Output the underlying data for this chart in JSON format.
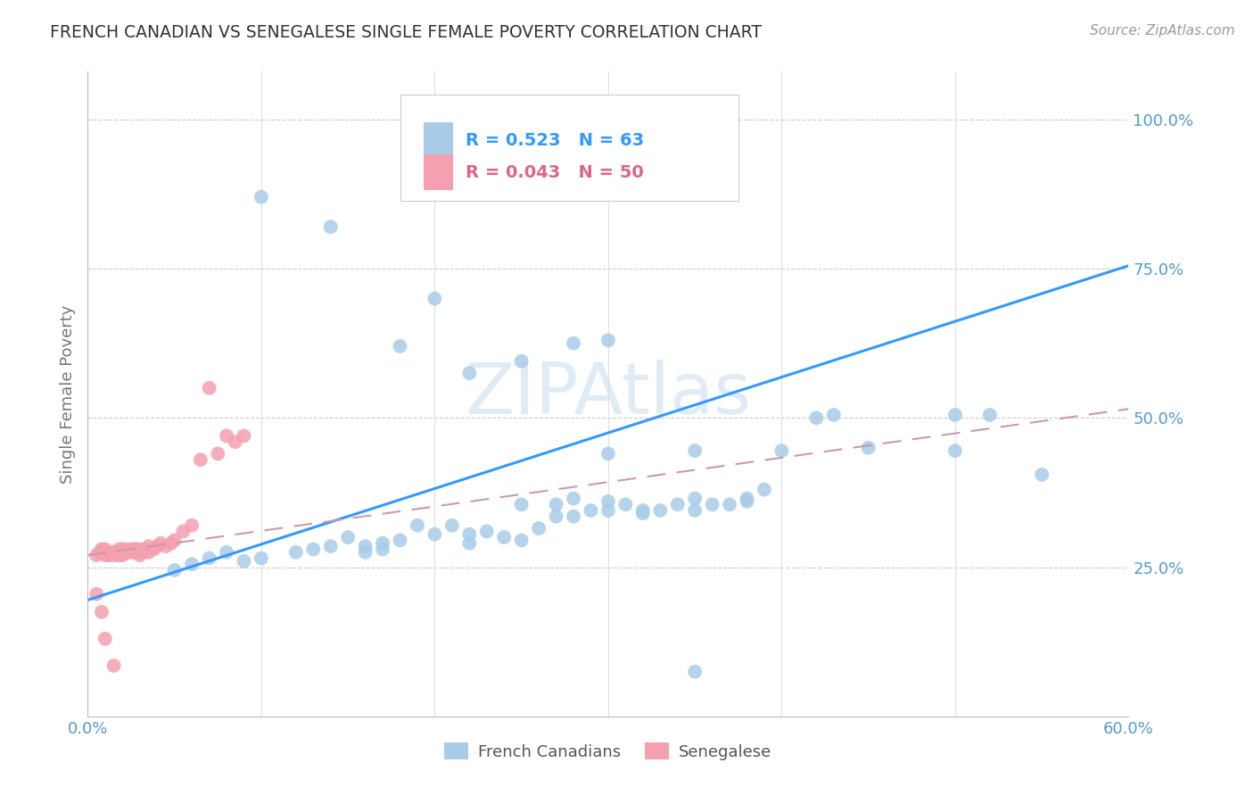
{
  "title": "FRENCH CANADIAN VS SENEGALESE SINGLE FEMALE POVERTY CORRELATION CHART",
  "source": "Source: ZipAtlas.com",
  "ylabel": "Single Female Poverty",
  "xlim": [
    0.0,
    0.6
  ],
  "ylim": [
    0.0,
    1.08
  ],
  "legend1_label": "French Canadians",
  "legend2_label": "Senegalese",
  "r1": 0.523,
  "n1": 63,
  "r2": 0.043,
  "n2": 50,
  "color_blue": "#a8cce8",
  "color_pink": "#f4a0b0",
  "color_trendline_blue": "#3399ff",
  "color_trendline_pink": "#cc99aa",
  "color_axis_labels": "#5599cc",
  "watermark_color": "#c5ddf0",
  "blue_trend_x0": 0.0,
  "blue_trend_y0": 0.195,
  "blue_trend_x1": 0.6,
  "blue_trend_y1": 0.755,
  "pink_trend_x0": 0.0,
  "pink_trend_y0": 0.27,
  "pink_trend_x1": 0.6,
  "pink_trend_y1": 0.515,
  "blue_points_x": [
    0.05,
    0.06,
    0.07,
    0.08,
    0.09,
    0.1,
    0.12,
    0.13,
    0.14,
    0.15,
    0.16,
    0.16,
    0.17,
    0.17,
    0.18,
    0.19,
    0.2,
    0.21,
    0.22,
    0.22,
    0.23,
    0.24,
    0.25,
    0.25,
    0.26,
    0.27,
    0.27,
    0.28,
    0.28,
    0.29,
    0.3,
    0.3,
    0.31,
    0.32,
    0.32,
    0.33,
    0.34,
    0.35,
    0.35,
    0.36,
    0.37,
    0.38,
    0.38,
    0.39,
    0.3,
    0.35,
    0.4,
    0.45,
    0.5,
    0.55,
    0.42,
    0.43,
    0.5,
    0.52,
    0.22,
    0.25,
    0.28,
    0.3,
    0.18,
    0.2,
    0.14,
    0.1,
    0.35
  ],
  "blue_points_y": [
    0.245,
    0.255,
    0.265,
    0.275,
    0.26,
    0.265,
    0.275,
    0.28,
    0.285,
    0.3,
    0.275,
    0.285,
    0.28,
    0.29,
    0.295,
    0.32,
    0.305,
    0.32,
    0.29,
    0.305,
    0.31,
    0.3,
    0.295,
    0.355,
    0.315,
    0.335,
    0.355,
    0.335,
    0.365,
    0.345,
    0.36,
    0.345,
    0.355,
    0.34,
    0.345,
    0.345,
    0.355,
    0.345,
    0.365,
    0.355,
    0.355,
    0.365,
    0.36,
    0.38,
    0.44,
    0.445,
    0.445,
    0.45,
    0.445,
    0.405,
    0.5,
    0.505,
    0.505,
    0.505,
    0.575,
    0.595,
    0.625,
    0.63,
    0.62,
    0.7,
    0.82,
    0.87,
    0.075
  ],
  "pink_points_x": [
    0.005,
    0.007,
    0.008,
    0.01,
    0.01,
    0.01,
    0.012,
    0.013,
    0.015,
    0.015,
    0.017,
    0.018,
    0.018,
    0.019,
    0.02,
    0.02,
    0.022,
    0.022,
    0.023,
    0.025,
    0.025,
    0.027,
    0.027,
    0.028,
    0.028,
    0.03,
    0.03,
    0.03,
    0.032,
    0.033,
    0.035,
    0.035,
    0.038,
    0.04,
    0.042,
    0.045,
    0.048,
    0.05,
    0.055,
    0.06,
    0.065,
    0.07,
    0.075,
    0.08,
    0.085,
    0.09,
    0.005,
    0.008,
    0.01,
    0.015
  ],
  "pink_points_y": [
    0.27,
    0.275,
    0.28,
    0.27,
    0.275,
    0.28,
    0.27,
    0.275,
    0.27,
    0.275,
    0.275,
    0.28,
    0.27,
    0.275,
    0.27,
    0.28,
    0.275,
    0.28,
    0.275,
    0.275,
    0.28,
    0.275,
    0.28,
    0.275,
    0.28,
    0.27,
    0.275,
    0.28,
    0.275,
    0.28,
    0.275,
    0.285,
    0.28,
    0.285,
    0.29,
    0.285,
    0.29,
    0.295,
    0.31,
    0.32,
    0.43,
    0.55,
    0.44,
    0.47,
    0.46,
    0.47,
    0.205,
    0.175,
    0.13,
    0.085
  ]
}
